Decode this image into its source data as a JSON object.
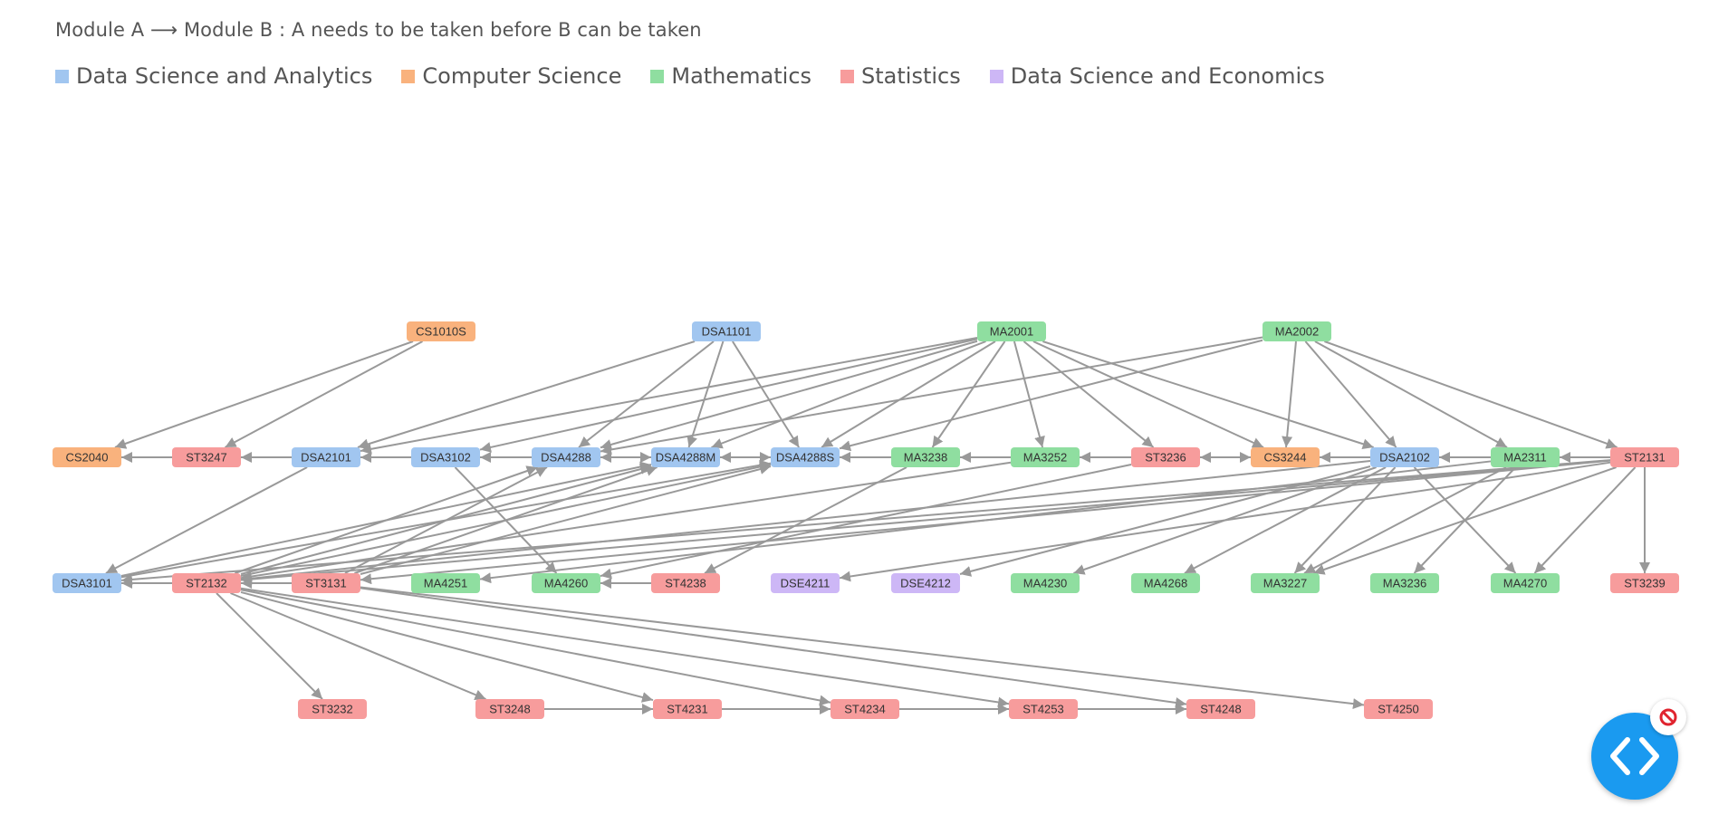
{
  "caption": "Module A ⟶ Module B : A needs to be taken before B can be taken",
  "legend": [
    {
      "label": "Data Science and Analytics",
      "color": "#a1c6f0"
    },
    {
      "label": "Computer Science",
      "color": "#f9b27d"
    },
    {
      "label": "Mathematics",
      "color": "#8fdea0"
    },
    {
      "label": "Statistics",
      "color": "#f79c9c"
    },
    {
      "label": "Data Science and Economics",
      "color": "#cdb7f6"
    }
  ],
  "colors": {
    "DSA": "#a1c6f0",
    "CS": "#f9b27d",
    "MA": "#8fdea0",
    "ST": "#f79c9c",
    "DSE": "#cdb7f6",
    "edge": "#999999",
    "fab": "#1a9af0",
    "block": "#e0242f"
  },
  "icons": {
    "fab": "code-brackets-icon",
    "badge": "block-icon"
  },
  "nodes": [
    {
      "id": "CS1010S",
      "cat": "CS"
    },
    {
      "id": "DSA1101",
      "cat": "DSA"
    },
    {
      "id": "MA2001",
      "cat": "MA"
    },
    {
      "id": "MA2002",
      "cat": "MA"
    },
    {
      "id": "CS2040",
      "cat": "CS"
    },
    {
      "id": "ST3247",
      "cat": "ST"
    },
    {
      "id": "DSA2101",
      "cat": "DSA"
    },
    {
      "id": "DSA3102",
      "cat": "DSA"
    },
    {
      "id": "DSA4288",
      "cat": "DSA"
    },
    {
      "id": "DSA4288M",
      "cat": "DSA"
    },
    {
      "id": "DSA4288S",
      "cat": "DSA"
    },
    {
      "id": "MA3238",
      "cat": "MA"
    },
    {
      "id": "MA3252",
      "cat": "MA"
    },
    {
      "id": "ST3236",
      "cat": "ST"
    },
    {
      "id": "CS3244",
      "cat": "CS"
    },
    {
      "id": "DSA2102",
      "cat": "DSA"
    },
    {
      "id": "MA2311",
      "cat": "MA"
    },
    {
      "id": "ST2131",
      "cat": "ST"
    },
    {
      "id": "DSA3101",
      "cat": "DSA"
    },
    {
      "id": "ST2132",
      "cat": "ST"
    },
    {
      "id": "ST3131",
      "cat": "ST"
    },
    {
      "id": "MA4251",
      "cat": "MA"
    },
    {
      "id": "MA4260",
      "cat": "MA"
    },
    {
      "id": "ST4238",
      "cat": "ST"
    },
    {
      "id": "DSE4211",
      "cat": "DSE"
    },
    {
      "id": "DSE4212",
      "cat": "DSE"
    },
    {
      "id": "MA4230",
      "cat": "MA"
    },
    {
      "id": "MA4268",
      "cat": "MA"
    },
    {
      "id": "MA3227",
      "cat": "MA"
    },
    {
      "id": "MA3236",
      "cat": "MA"
    },
    {
      "id": "MA4270",
      "cat": "MA"
    },
    {
      "id": "ST3239",
      "cat": "ST"
    },
    {
      "id": "ST3232",
      "cat": "ST"
    },
    {
      "id": "ST3248",
      "cat": "ST"
    },
    {
      "id": "ST4231",
      "cat": "ST"
    },
    {
      "id": "ST4234",
      "cat": "ST"
    },
    {
      "id": "ST4253",
      "cat": "ST"
    },
    {
      "id": "ST4248",
      "cat": "ST"
    },
    {
      "id": "ST4250",
      "cat": "ST"
    }
  ],
  "edges": [
    [
      "CS1010S",
      "CS2040"
    ],
    [
      "CS1010S",
      "ST3247"
    ],
    [
      "DSA1101",
      "DSA2101"
    ],
    [
      "DSA1101",
      "DSA4288"
    ],
    [
      "DSA1101",
      "DSA4288M"
    ],
    [
      "DSA1101",
      "DSA4288S"
    ],
    [
      "MA2001",
      "DSA2101"
    ],
    [
      "MA2001",
      "DSA3102"
    ],
    [
      "MA2001",
      "DSA4288"
    ],
    [
      "MA2001",
      "DSA4288M"
    ],
    [
      "MA2001",
      "DSA4288S"
    ],
    [
      "MA2001",
      "MA3238"
    ],
    [
      "MA2001",
      "MA3252"
    ],
    [
      "MA2001",
      "ST3236"
    ],
    [
      "MA2001",
      "CS3244"
    ],
    [
      "MA2001",
      "DSA2102"
    ],
    [
      "MA2002",
      "DSA4288"
    ],
    [
      "MA2002",
      "DSA4288S"
    ],
    [
      "MA2002",
      "CS3244"
    ],
    [
      "MA2002",
      "DSA2102"
    ],
    [
      "MA2002",
      "MA2311"
    ],
    [
      "MA2002",
      "ST2131"
    ],
    [
      "ST3247",
      "CS2040"
    ],
    [
      "DSA2101",
      "ST3247"
    ],
    [
      "DSA3102",
      "DSA2101"
    ],
    [
      "DSA4288",
      "DSA3102"
    ],
    [
      "DSA4288M",
      "DSA4288"
    ],
    [
      "DSA4288",
      "DSA4288M"
    ],
    [
      "DSA4288S",
      "DSA4288M"
    ],
    [
      "DSA4288M",
      "DSA4288S"
    ],
    [
      "MA3238",
      "DSA4288S"
    ],
    [
      "MA3252",
      "MA3238"
    ],
    [
      "ST3236",
      "MA3252"
    ],
    [
      "ST3236",
      "CS3244"
    ],
    [
      "CS3244",
      "ST3236"
    ],
    [
      "DSA2102",
      "CS3244"
    ],
    [
      "MA2311",
      "DSA2102"
    ],
    [
      "ST2131",
      "MA2311"
    ],
    [
      "DSA2101",
      "DSA3101"
    ],
    [
      "DSA3102",
      "MA4260"
    ],
    [
      "ST2132",
      "DSA4288"
    ],
    [
      "ST2132",
      "DSA4288M"
    ],
    [
      "ST2132",
      "DSA4288S"
    ],
    [
      "ST3131",
      "DSA4288"
    ],
    [
      "ST3131",
      "DSA4288M"
    ],
    [
      "ST3131",
      "DSA4288S"
    ],
    [
      "DSA3101",
      "DSA4288M"
    ],
    [
      "DSA3101",
      "DSA4288S"
    ],
    [
      "MA3238",
      "ST4238"
    ],
    [
      "MA3252",
      "ST2132"
    ],
    [
      "ST3236",
      "MA4260"
    ],
    [
      "DSA2102",
      "DSE4212"
    ],
    [
      "DSA2102",
      "MA4230"
    ],
    [
      "DSA2102",
      "MA4268"
    ],
    [
      "DSA2102",
      "MA3227"
    ],
    [
      "DSA2102",
      "MA4270"
    ],
    [
      "DSA2102",
      "ST2132"
    ],
    [
      "MA2311",
      "MA3227"
    ],
    [
      "MA2311",
      "MA3236"
    ],
    [
      "MA2311",
      "MA4251"
    ],
    [
      "ST2131",
      "ST2132"
    ],
    [
      "ST2131",
      "ST3131"
    ],
    [
      "ST2131",
      "DSE4211"
    ],
    [
      "ST2131",
      "MA3227"
    ],
    [
      "ST2131",
      "MA4270"
    ],
    [
      "ST2131",
      "ST3239"
    ],
    [
      "ST2131",
      "DSA3101"
    ],
    [
      "ST2132",
      "DSA3101"
    ],
    [
      "ST3131",
      "ST2132"
    ],
    [
      "ST4238",
      "MA4260"
    ],
    [
      "ST2132",
      "ST3232"
    ],
    [
      "ST2132",
      "ST3248"
    ],
    [
      "ST2132",
      "ST4231"
    ],
    [
      "ST2132",
      "ST4234"
    ],
    [
      "ST2132",
      "ST4253"
    ],
    [
      "ST3131",
      "ST4248"
    ],
    [
      "ST3131",
      "ST4250"
    ],
    [
      "ST3248",
      "ST4231"
    ],
    [
      "ST4231",
      "ST4234"
    ],
    [
      "ST4234",
      "ST4253"
    ],
    [
      "ST4253",
      "ST4248"
    ]
  ]
}
